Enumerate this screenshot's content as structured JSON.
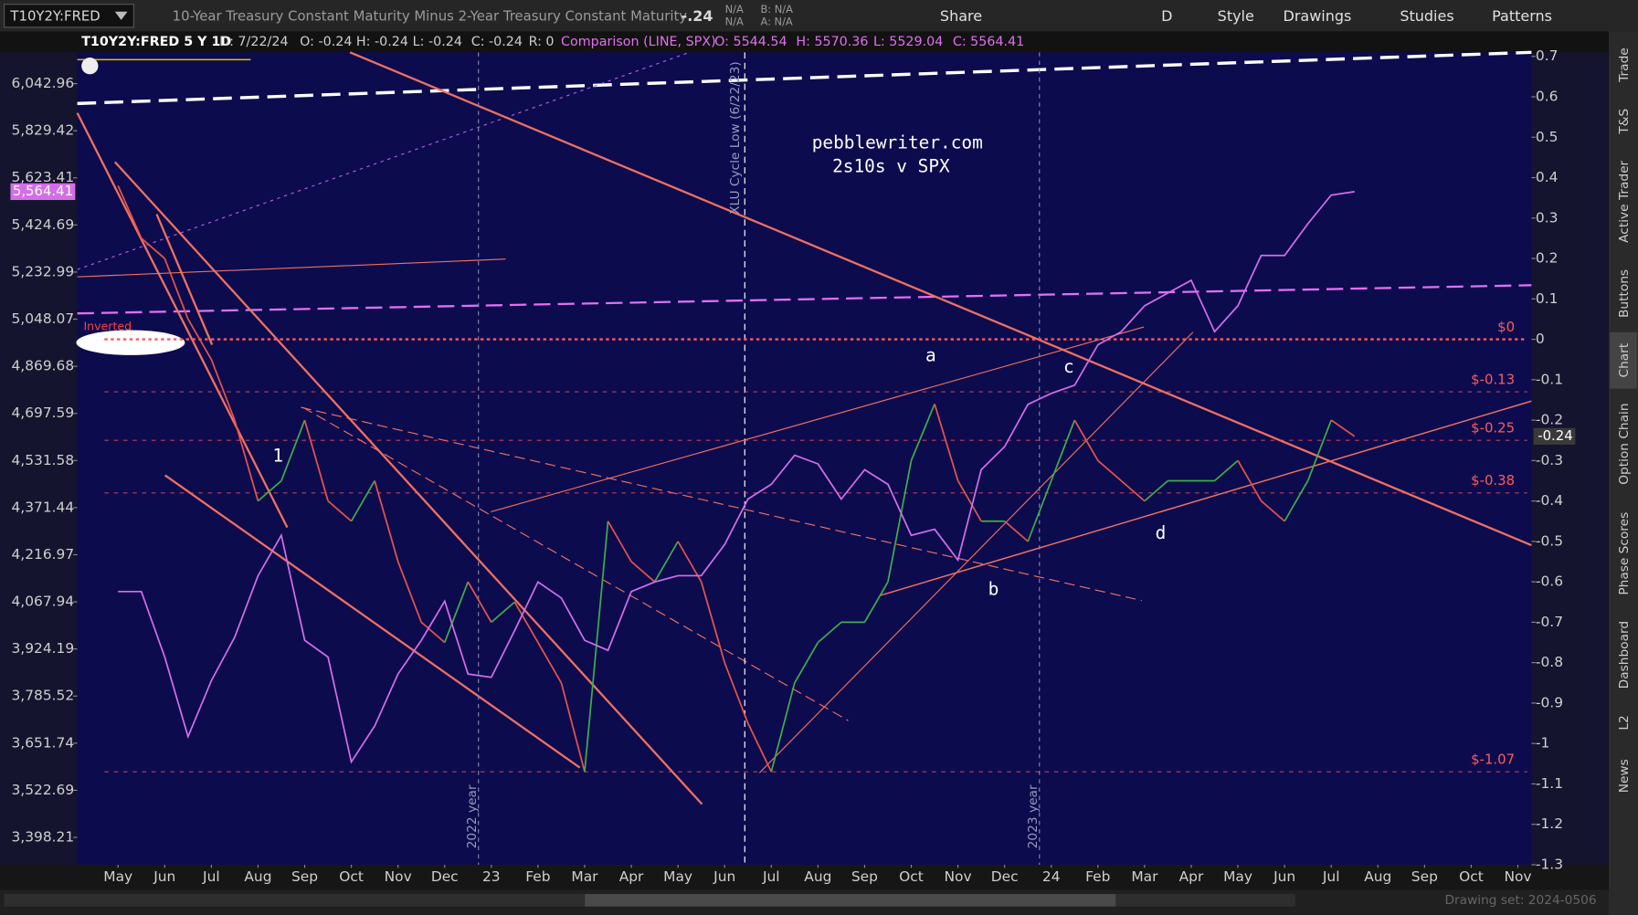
{
  "toolbar": {
    "description": "10-Year Treasury Constant Maturity Minus 2-Year Treasury Constant Maturity",
    "last": "-.24",
    "quote": [
      "N/A",
      "N/A",
      "B: N/A",
      "A: N/A"
    ],
    "buttons": [
      "Share",
      "D",
      "Style",
      "Drawings",
      "Studies",
      "Patterns"
    ]
  },
  "info_bar": [
    "T10Y2Y:FRED 5 Y 1D",
    "D: 7/22/24",
    "O: -0.24",
    "H: -0.24",
    "L: -0.24",
    "C: -0.24",
    "R: 0",
    "Comparison (LINE, SPX)",
    "O: 5544.54",
    "H: 5570.36",
    "L: 5529.04",
    "C: 5564.41"
  ],
  "annotations": {
    "site": "pebblewriter.com",
    "subtitle": "2s10s v SPX",
    "points": [
      "a",
      "b",
      "c",
      "d",
      "1"
    ],
    "inverted": "Inverted",
    "xlu": "XLU Cycle Low (6/22/23)",
    "years": [
      "2022 year",
      "2023 year"
    ]
  },
  "sidebar": [
    "Trade",
    "T&S",
    "Active Trader",
    "Buttons",
    "Chart",
    "Option Chain",
    "Phase Scores",
    "Dashboard",
    "L2",
    "News"
  ],
  "status": "Drawing set: 2024-0506",
  "chart_data": {
    "type": "line",
    "categories": [
      "May",
      null,
      "Jun",
      null,
      "Jul",
      null,
      "Aug",
      null,
      "Sep",
      null,
      "Oct",
      null,
      "Nov",
      null,
      "Dec",
      null,
      "23",
      null,
      "Feb",
      null,
      "Mar",
      null,
      "Apr",
      null,
      "May",
      null,
      "Jun",
      null,
      "Jul",
      null,
      "Aug",
      null,
      "Sep",
      null,
      "Oct",
      null,
      "Nov",
      null,
      "Dec",
      null,
      "24",
      null,
      "Feb",
      null,
      "Mar",
      null,
      "Apr",
      null,
      "May",
      null,
      "Jun",
      null,
      "Jul",
      null,
      "Aug",
      null,
      "Sep",
      null,
      "Oct",
      null,
      "Nov"
    ],
    "series": [
      {
        "name": "T10Y2Y:FRED",
        "axis": "y2",
        "up_color": "#3fae49",
        "down_color": "#e8544a",
        "values": [
          0.38,
          0.25,
          0.2,
          0.05,
          -0.05,
          -0.2,
          -0.4,
          -0.35,
          -0.2,
          -0.4,
          -0.45,
          -0.35,
          -0.55,
          -0.7,
          -0.75,
          -0.6,
          -0.7,
          -0.65,
          -0.75,
          -0.85,
          -1.07,
          -0.45,
          -0.55,
          -0.6,
          -0.5,
          -0.6,
          -0.8,
          -0.95,
          -1.07,
          -0.85,
          -0.75,
          -0.7,
          -0.7,
          -0.6,
          -0.3,
          -0.16,
          -0.35,
          -0.45,
          -0.45,
          -0.5,
          -0.35,
          -0.2,
          -0.3,
          -0.35,
          -0.4,
          -0.35,
          -0.35,
          -0.35,
          -0.3,
          -0.4,
          -0.45,
          -0.35,
          -0.2,
          -0.24,
          null,
          null,
          null,
          null,
          null,
          null,
          null
        ]
      },
      {
        "axis": "y",
        "color": "#d46ee8",
        "values": [
          4100,
          4100,
          3900,
          3670,
          3830,
          3960,
          4150,
          4280,
          3950,
          3900,
          3600,
          3700,
          3850,
          3950,
          4070,
          3850,
          3840,
          3980,
          4130,
          4080,
          3950,
          3920,
          4100,
          4130,
          4150,
          4150,
          4250,
          4400,
          4450,
          4550,
          4520,
          4400,
          4500,
          4450,
          4280,
          4300,
          4200,
          4500,
          4580,
          4730,
          4770,
          4800,
          4950,
          5000,
          5100,
          5150,
          5200,
          5000,
          5100,
          5300,
          5300,
          5430,
          5550,
          5564.41,
          null,
          null,
          null,
          null,
          null,
          null,
          null
        ],
        "value_labels": [
          null,
          null,
          null,
          null,
          null,
          null,
          null,
          null,
          null,
          null,
          null,
          null,
          null,
          null,
          null,
          null,
          null,
          null,
          null,
          null,
          null,
          null,
          null,
          null,
          null,
          null,
          null,
          null,
          null,
          null,
          null,
          null,
          null,
          null,
          null,
          null,
          null,
          null,
          null,
          null,
          null,
          null,
          null,
          null,
          null,
          null,
          null,
          null,
          null,
          null,
          null,
          null,
          null,
          "5,564.41",
          null,
          null,
          null,
          null,
          null,
          null,
          null
        ]
      }
    ],
    "log_y": true,
    "ylim": [
      3328,
      6189
    ],
    "yticks": [
      {
        "value": 6042.96,
        "label": "6,042.96"
      },
      {
        "value": 5829.42,
        "label": "5,829.42"
      },
      {
        "value": 5623.41,
        "label": "5,623.41"
      },
      {
        "value": 5424.69,
        "label": "5,424.69"
      },
      {
        "value": 5232.99,
        "label": "5,232.99"
      },
      {
        "value": 5048.07,
        "label": "5,048.07"
      },
      {
        "value": 4869.68,
        "label": "4,869.68"
      },
      {
        "value": 4697.59,
        "label": "4,697.59"
      },
      {
        "value": 4531.58,
        "label": "4,531.58"
      },
      {
        "value": 4371.44,
        "label": "4,371.44"
      },
      {
        "value": 4216.97,
        "label": "4,216.97"
      },
      {
        "value": 4067.94,
        "label": "4,067.94"
      },
      {
        "value": 3924.19,
        "label": "3,924.19"
      },
      {
        "value": 3785.52,
        "label": "3,785.52"
      },
      {
        "value": 3651.74,
        "label": "3,651.74"
      },
      {
        "value": 3522.69,
        "label": "3,522.69"
      },
      {
        "value": 3398.21,
        "label": "3,398.21"
      }
    ],
    "y2lim": [
      -1.3,
      0.71
    ],
    "y2ticks": [
      0.7,
      0.6,
      0.5,
      0.4,
      0.3,
      0.2,
      0.1,
      0,
      -0.1,
      -0.2,
      -0.3,
      -0.4,
      -0.5,
      -0.6,
      -0.7,
      -0.8,
      -0.9,
      -1,
      -1.1,
      -1.2,
      -1.3
    ],
    "levels": [
      {
        "value": 0,
        "label": "$0"
      },
      {
        "value": -0.13,
        "label": "$-0.13"
      },
      {
        "value": -0.25,
        "label": "$-0.25"
      },
      {
        "value": -0.38,
        "label": "$-0.38"
      },
      {
        "value": -1.07,
        "label": "$-1.07"
      }
    ],
    "level_color": "#ff5a5a"
  }
}
